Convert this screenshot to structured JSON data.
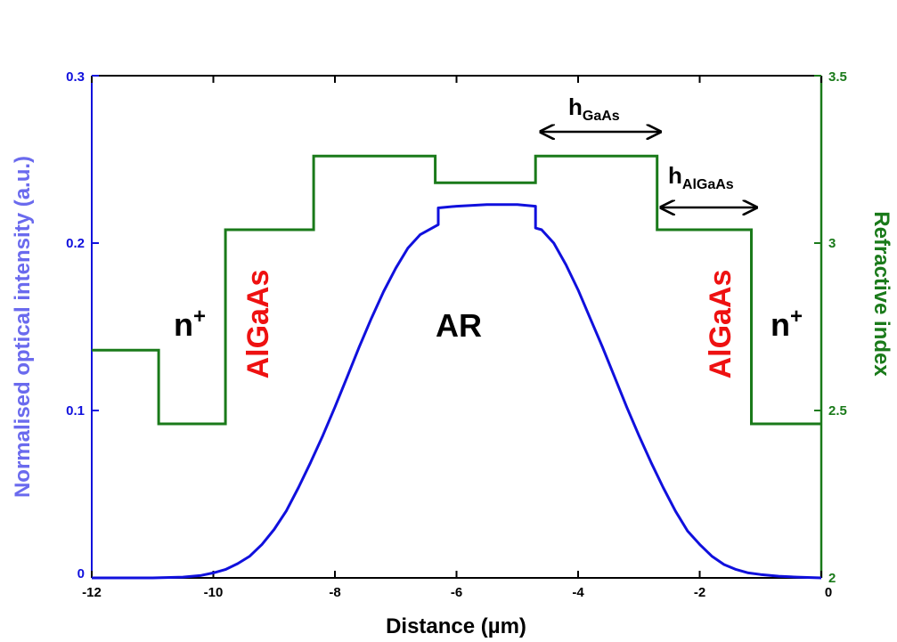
{
  "chart_data": {
    "type": "line",
    "xlabel": "Distance (µm)",
    "ylabel_left": "Normalised optical intensity (a.u.)",
    "ylabel_right": "Refractive index",
    "xlim": [
      -12,
      0
    ],
    "ylim_left": [
      0,
      0.3
    ],
    "ylim_right": [
      2,
      3.5
    ],
    "x_ticks": [
      "-12",
      "-10",
      "-8",
      "-6",
      "-4",
      "-2",
      "0"
    ],
    "y_left_ticks": [
      "0",
      "0.1",
      "0.2",
      "0.3"
    ],
    "y_right_ticks": [
      "2",
      "2.5",
      "3",
      "3.5"
    ],
    "grid": false,
    "colors": {
      "intensity": "#1010dd",
      "refractive_index": "#1a7a1a",
      "left_axis_label": "#6a6aee",
      "region_text_red": "#ee1111",
      "text": "#000000"
    },
    "series": [
      {
        "axis": "left",
        "x": [
          -12,
          -11,
          -10.5,
          -10.2,
          -10,
          -9.8,
          -9.6,
          -9.4,
          -9.2,
          -9,
          -8.8,
          -8.6,
          -8.4,
          -8.2,
          -8,
          -7.8,
          -7.6,
          -7.4,
          -7.2,
          -7,
          -6.8,
          -6.6,
          -6.4,
          -6.3,
          -6.3,
          -6,
          -5.5,
          -5,
          -4.7,
          -4.7,
          -4.6,
          -4.4,
          -4.2,
          -4,
          -3.8,
          -3.6,
          -3.4,
          -3.2,
          -3,
          -2.8,
          -2.6,
          -2.4,
          -2.2,
          -2,
          -1.8,
          -1.6,
          -1.4,
          -1.2,
          -1,
          -0.7,
          -0.4,
          0
        ],
        "values": [
          0.0,
          0.0,
          0.0005,
          0.0015,
          0.003,
          0.005,
          0.0085,
          0.013,
          0.02,
          0.029,
          0.04,
          0.054,
          0.069,
          0.085,
          0.102,
          0.12,
          0.138,
          0.155,
          0.171,
          0.185,
          0.197,
          0.205,
          0.209,
          0.211,
          0.221,
          0.222,
          0.223,
          0.223,
          0.222,
          0.209,
          0.208,
          0.2,
          0.187,
          0.172,
          0.155,
          0.138,
          0.12,
          0.102,
          0.085,
          0.069,
          0.054,
          0.04,
          0.028,
          0.02,
          0.013,
          0.008,
          0.005,
          0.003,
          0.002,
          0.001,
          0.0005,
          0.0
        ]
      },
      {
        "axis": "right",
        "x": [
          -12,
          -10.9,
          -10.9,
          -9.8,
          -9.8,
          -8.35,
          -8.35,
          -6.35,
          -6.35,
          -4.7,
          -4.7,
          -2.7,
          -2.7,
          -1.15,
          -1.15,
          0
        ],
        "values": [
          2.68,
          2.68,
          2.46,
          2.46,
          3.04,
          3.04,
          3.26,
          3.26,
          3.18,
          3.18,
          3.26,
          3.26,
          3.04,
          3.04,
          2.46,
          2.46
        ]
      }
    ],
    "annotations": {
      "n_left": {
        "base": "n",
        "sup": "+"
      },
      "n_right": {
        "base": "n",
        "sup": "+"
      },
      "algaas_left": "AlGaAs",
      "algaas_right": "AlGaAs",
      "ar": "AR",
      "h_gaas": {
        "base": "h",
        "sub": "GaAs"
      },
      "h_algaas": {
        "base": "h",
        "sub": "AlGaAs"
      }
    }
  }
}
